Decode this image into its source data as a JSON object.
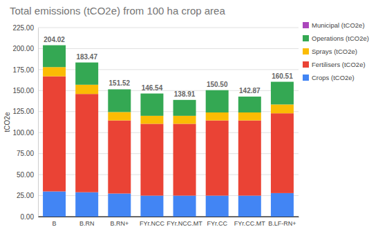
{
  "chart_data": {
    "type": "bar",
    "title": "Total emissions (tCO2e) from 100 ha crop area",
    "y_label": "tCO2e",
    "categories": [
      "B",
      "B.RN",
      "B.RN+",
      "FYr.NCC",
      "FYr.NCC.MT",
      "FYr.CC",
      "FYr.CC.MT",
      "B.LF-RN+"
    ],
    "series": [
      {
        "name": "Crops (tCO2e)",
        "color": "#4285f4",
        "values": [
          30,
          29,
          27.5,
          25,
          25,
          25,
          25,
          28
        ]
      },
      {
        "name": "Fertilisers (tCO2e)",
        "color": "#ea4335",
        "values": [
          137,
          117,
          87,
          85.5,
          85.5,
          89.5,
          89.5,
          95
        ]
      },
      {
        "name": "Sprays (tCO2e)",
        "color": "#fbbc04",
        "values": [
          11,
          11,
          10,
          9.5,
          9.5,
          9.5,
          9.5,
          10.5
        ]
      },
      {
        "name": "Operations (tCO2e)",
        "color": "#34a853",
        "values": [
          26.02,
          26.47,
          27.02,
          26.54,
          18.91,
          26.5,
          18.87,
          27.01
        ]
      },
      {
        "name": "Municipal (tCO2e)",
        "color": "#ab47bc",
        "values": [
          0,
          0,
          0,
          0,
          0,
          0,
          0,
          0
        ]
      }
    ],
    "totals": [
      204.02,
      183.47,
      151.52,
      146.54,
      138.91,
      150.5,
      142.87,
      160.51
    ],
    "total_labels": [
      "204.02",
      "183.47",
      "151.52",
      "146.54",
      "138.91",
      "150.50",
      "142.87",
      "160.51"
    ],
    "ylim": [
      0,
      225
    ],
    "yticks": [
      {
        "value": 0,
        "label": "0.00"
      },
      {
        "value": 25,
        "label": "25.00"
      },
      {
        "value": 50,
        "label": "50.00"
      },
      {
        "value": 75,
        "label": "75.00"
      },
      {
        "value": 100,
        "label": "100.00"
      },
      {
        "value": 125,
        "label": "125.00"
      },
      {
        "value": 150,
        "label": "150.00"
      },
      {
        "value": 175,
        "label": "175.00"
      },
      {
        "value": 200,
        "label": "200.00"
      },
      {
        "value": 225,
        "label": "225.00"
      }
    ],
    "stacked": true,
    "grid": true,
    "legend": "right"
  }
}
